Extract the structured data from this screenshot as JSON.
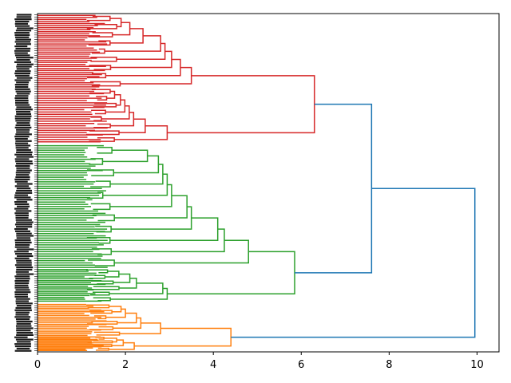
{
  "chart_data": {
    "type": "dendrogram",
    "orientation": "horizontal",
    "title": "",
    "xlabel": "",
    "ylabel": "",
    "xlim": [
      0,
      10.5
    ],
    "x_ticks": [
      0,
      2,
      4,
      6,
      8,
      10
    ],
    "x_tick_labels": [
      "0",
      "2",
      "4",
      "6",
      "8",
      "10"
    ],
    "grid": false,
    "leaf_labels_legible": false,
    "leaf_count_estimate": 150,
    "clusters": [
      {
        "name": "",
        "color": "#d62728",
        "root_height": 6.3,
        "leaf_fraction": 0.385,
        "subclusters": [
          {
            "height": 4.1,
            "leaf_fraction": 0.22,
            "children_heights": [
              3.25,
              3.5,
              2.9,
              2.1,
              3.05,
              2.4,
              1.9,
              2.8
            ]
          },
          {
            "height": 3.05,
            "leaf_fraction": 0.165,
            "children_heights": [
              2.45,
              2.95,
              1.9,
              2.1,
              1.75,
              1.6,
              2.0
            ]
          }
        ]
      },
      {
        "name": "",
        "color": "#2ca02c",
        "root_height": 5.85,
        "leaf_fraction": 0.47,
        "subclusters": [
          {
            "height": 4.95,
            "leaf_fraction": 0.37,
            "children_heights": [
              4.1,
              4.25,
              4.8,
              3.0,
              2.95,
              2.75,
              2.8,
              3.45,
              2.5,
              3.4
            ]
          },
          {
            "height": 3.5,
            "leaf_fraction": 0.1,
            "children_heights": [
              2.9,
              2.85,
              2.25,
              2.1,
              1.85
            ]
          }
        ]
      },
      {
        "name": "",
        "color": "#ff7f0e",
        "root_height": 4.4,
        "leaf_fraction": 0.145,
        "subclusters": [
          {
            "height": 3.2,
            "leaf_fraction": 0.1,
            "children_heights": [
              2.8,
              2.3,
              2.25,
              2.0,
              1.9
            ]
          },
          {
            "height": 2.55,
            "leaf_fraction": 0.045,
            "children_heights": [
              2.2,
              1.95,
              1.7
            ]
          }
        ]
      }
    ],
    "above_threshold": {
      "color": "#1f77b4",
      "links": [
        {
          "height": 7.6,
          "joins": [
            "red",
            "green"
          ]
        },
        {
          "height": 9.95,
          "joins": [
            "red+green",
            "orange"
          ]
        }
      ]
    }
  }
}
